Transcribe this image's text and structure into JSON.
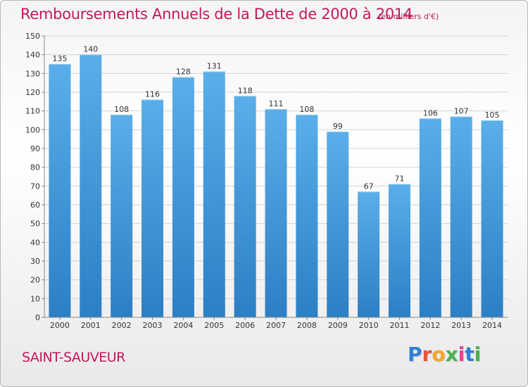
{
  "title": "Remboursements Annuels de la Dette de 2000 à 2014",
  "subtitle": "(en milliers d'€)",
  "place": "SAINT-SAUVEUR",
  "logo": {
    "text": "Proxiti",
    "letter_colors": [
      "#2f7fd6",
      "#e8533a",
      "#f5a623",
      "#4caf50",
      "#e84393",
      "#2f7fd6",
      "#4caf50"
    ]
  },
  "chart_data": {
    "type": "bar",
    "categories": [
      "2000",
      "2001",
      "2002",
      "2003",
      "2004",
      "2005",
      "2006",
      "2007",
      "2008",
      "2009",
      "2010",
      "2011",
      "2012",
      "2013",
      "2014"
    ],
    "values": [
      135,
      140,
      108,
      116,
      128,
      131,
      118,
      111,
      108,
      99,
      67,
      71,
      106,
      107,
      105
    ],
    "data_labels": [
      "135",
      "140",
      "108",
      "116",
      "128",
      "131",
      "118",
      "111",
      "108",
      "99",
      "67",
      "71",
      "106",
      "107",
      "105"
    ],
    "yticks": [
      "0",
      "10",
      "20",
      "30",
      "40",
      "50",
      "60",
      "70",
      "80",
      "90",
      "100",
      "110",
      "120",
      "130",
      "140",
      "150"
    ],
    "ylim": [
      0,
      150
    ],
    "grid": true,
    "colors": {
      "bar_top": "#5aaee9",
      "bar_bottom": "#2c7fc4",
      "axis": "#888888",
      "grid": "#d4d4d4"
    }
  }
}
